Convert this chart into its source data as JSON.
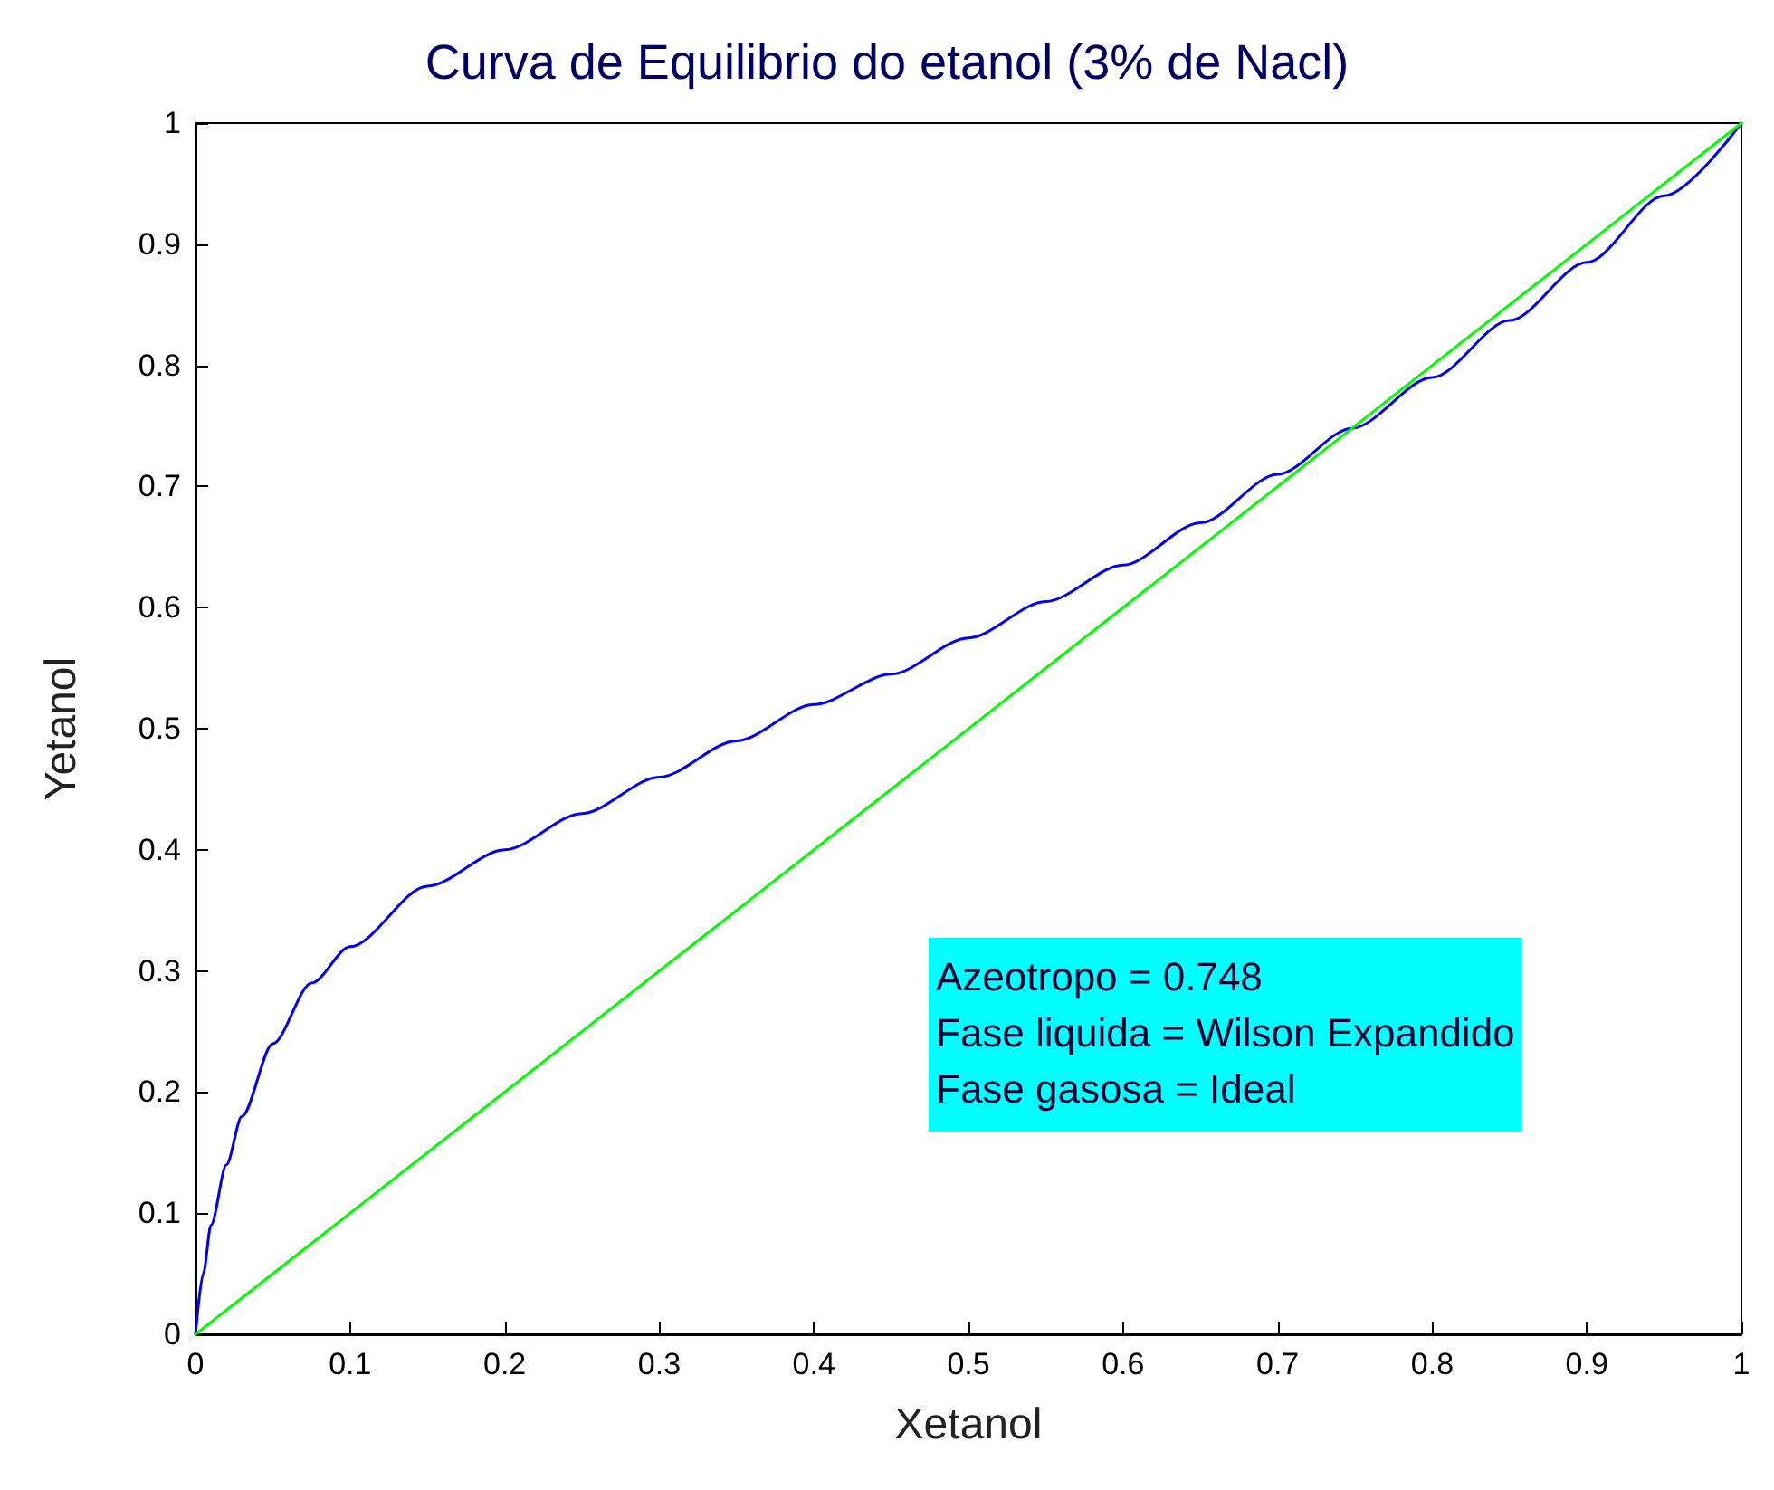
{
  "chart_data": {
    "type": "line",
    "title": "Curva de Equilibrio do etanol (3% de Nacl)",
    "xlabel": "Xetanol",
    "ylabel": "Yetanol",
    "xlim": [
      0,
      1
    ],
    "ylim": [
      0,
      1
    ],
    "xticks": [
      0,
      0.1,
      0.2,
      0.3,
      0.4,
      0.5,
      0.6,
      0.7,
      0.8,
      0.9,
      1
    ],
    "yticks": [
      0,
      0.1,
      0.2,
      0.3,
      0.4,
      0.5,
      0.6,
      0.7,
      0.8,
      0.9,
      1
    ],
    "grid": false,
    "marker": "none",
    "line_style": "solid",
    "annotations": [
      "Azeotropo = 0.748",
      "Fase liquida = Wilson Expandido",
      "Fase gasosa = Ideal"
    ],
    "series": [
      {
        "color": "#0000ff",
        "x": [
          0,
          0.005,
          0.01,
          0.02,
          0.03,
          0.05,
          0.075,
          0.1,
          0.15,
          0.2,
          0.25,
          0.3,
          0.35,
          0.4,
          0.45,
          0.5,
          0.55,
          0.6,
          0.65,
          0.7,
          0.748,
          0.8,
          0.85,
          0.9,
          0.95,
          1
        ],
        "values": [
          0,
          0.05,
          0.09,
          0.14,
          0.18,
          0.24,
          0.29,
          0.32,
          0.37,
          0.4,
          0.43,
          0.46,
          0.49,
          0.52,
          0.545,
          0.575,
          0.605,
          0.635,
          0.67,
          0.71,
          0.748,
          0.79,
          0.837,
          0.885,
          0.94,
          1
        ]
      },
      {
        "color": "#00ff00",
        "x": [
          0,
          1
        ],
        "values": [
          0,
          1
        ]
      }
    ]
  }
}
